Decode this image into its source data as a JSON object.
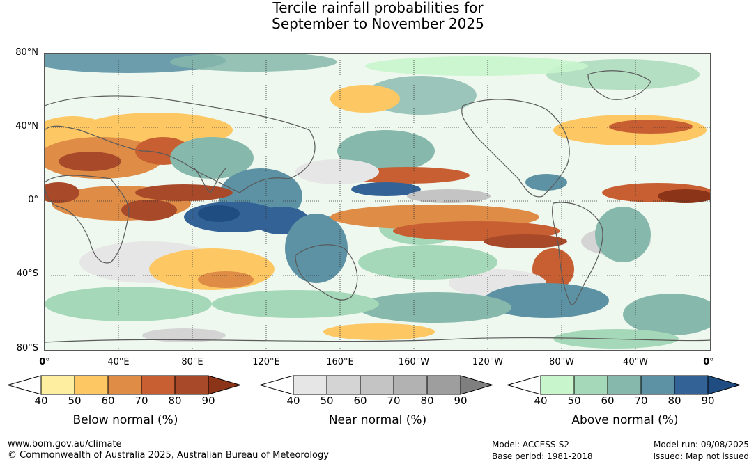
{
  "title": {
    "line1": "Tercile rainfall probabilities for",
    "line2": "September to November 2025"
  },
  "map": {
    "lat_labels": [
      "80°N",
      "40°N",
      "0°",
      "40°S",
      "80°S"
    ],
    "lon_labels": [
      "0°",
      "40°E",
      "80°E",
      "120°E",
      "160°E",
      "160°W",
      "120°W",
      "80°W",
      "40°W",
      "0°"
    ],
    "colors": {
      "below": [
        "#fdeea0",
        "#fdc864",
        "#de8c46",
        "#c75f32",
        "#a84a2a",
        "#8c3418"
      ],
      "near": [
        "#e6e6e6",
        "#d4d4d4",
        "#c4c4c4",
        "#b2b2b2",
        "#9e9e9e",
        "#7f7f7f"
      ],
      "above": [
        "#c8f5cc",
        "#a5d8b8",
        "#86b8ac",
        "#5c92a4",
        "#336396",
        "#1f4d82"
      ],
      "land_outline": "#5a5a5a"
    }
  },
  "colorbars": [
    {
      "id": "below",
      "label": "Below normal (%)",
      "ticks": [
        "40",
        "50",
        "60",
        "70",
        "80",
        "90"
      ]
    },
    {
      "id": "near",
      "label": "Near normal (%)",
      "ticks": [
        "40",
        "50",
        "60",
        "70",
        "80",
        "90"
      ]
    },
    {
      "id": "above",
      "label": "Above normal (%)",
      "ticks": [
        "40",
        "50",
        "60",
        "70",
        "80",
        "90"
      ]
    }
  ],
  "footer": {
    "website": "www.bom.gov.au/climate",
    "copyright": "© Commonwealth of Australia 2025, Australian Bureau of Meteorology",
    "model": "Model: ACCESS-S2",
    "base_period": "Base period: 1981-2018",
    "model_run": "Model run: 09/08/2025",
    "issued": "Issued: Map not issued"
  }
}
